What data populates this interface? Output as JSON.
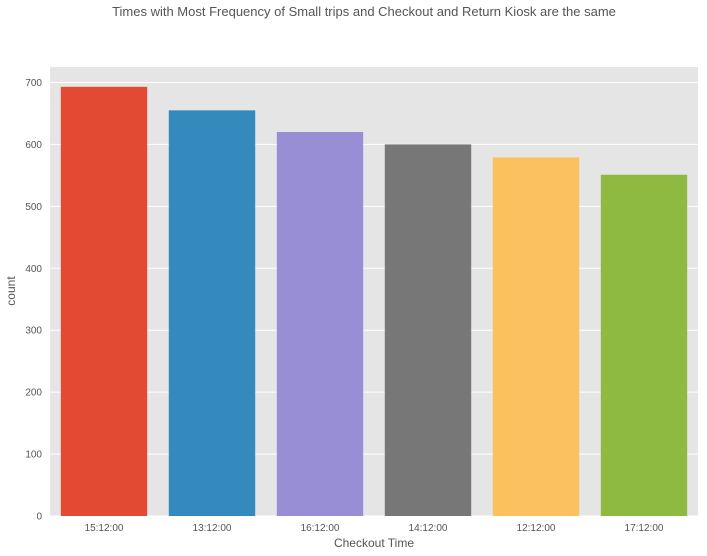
{
  "chart_data": {
    "type": "bar",
    "title": "Times with Most Frequency of Small trips and Checkout and Return Kiosk are the same",
    "xlabel": "Checkout Time",
    "ylabel": "count",
    "categories": [
      "15:12:00",
      "13:12:00",
      "16:12:00",
      "14:12:00",
      "12:12:00",
      "17:12:00"
    ],
    "values": [
      693,
      655,
      620,
      600,
      579,
      551
    ],
    "colors": [
      "#E24A33",
      "#348ABD",
      "#988ED5",
      "#777777",
      "#FBC15E",
      "#8EBA42"
    ],
    "ylim": [
      0,
      725
    ],
    "yticks": [
      0,
      100,
      200,
      300,
      400,
      500,
      600,
      700
    ],
    "grid": true,
    "background": "#E5E5E5",
    "legend": "none"
  }
}
